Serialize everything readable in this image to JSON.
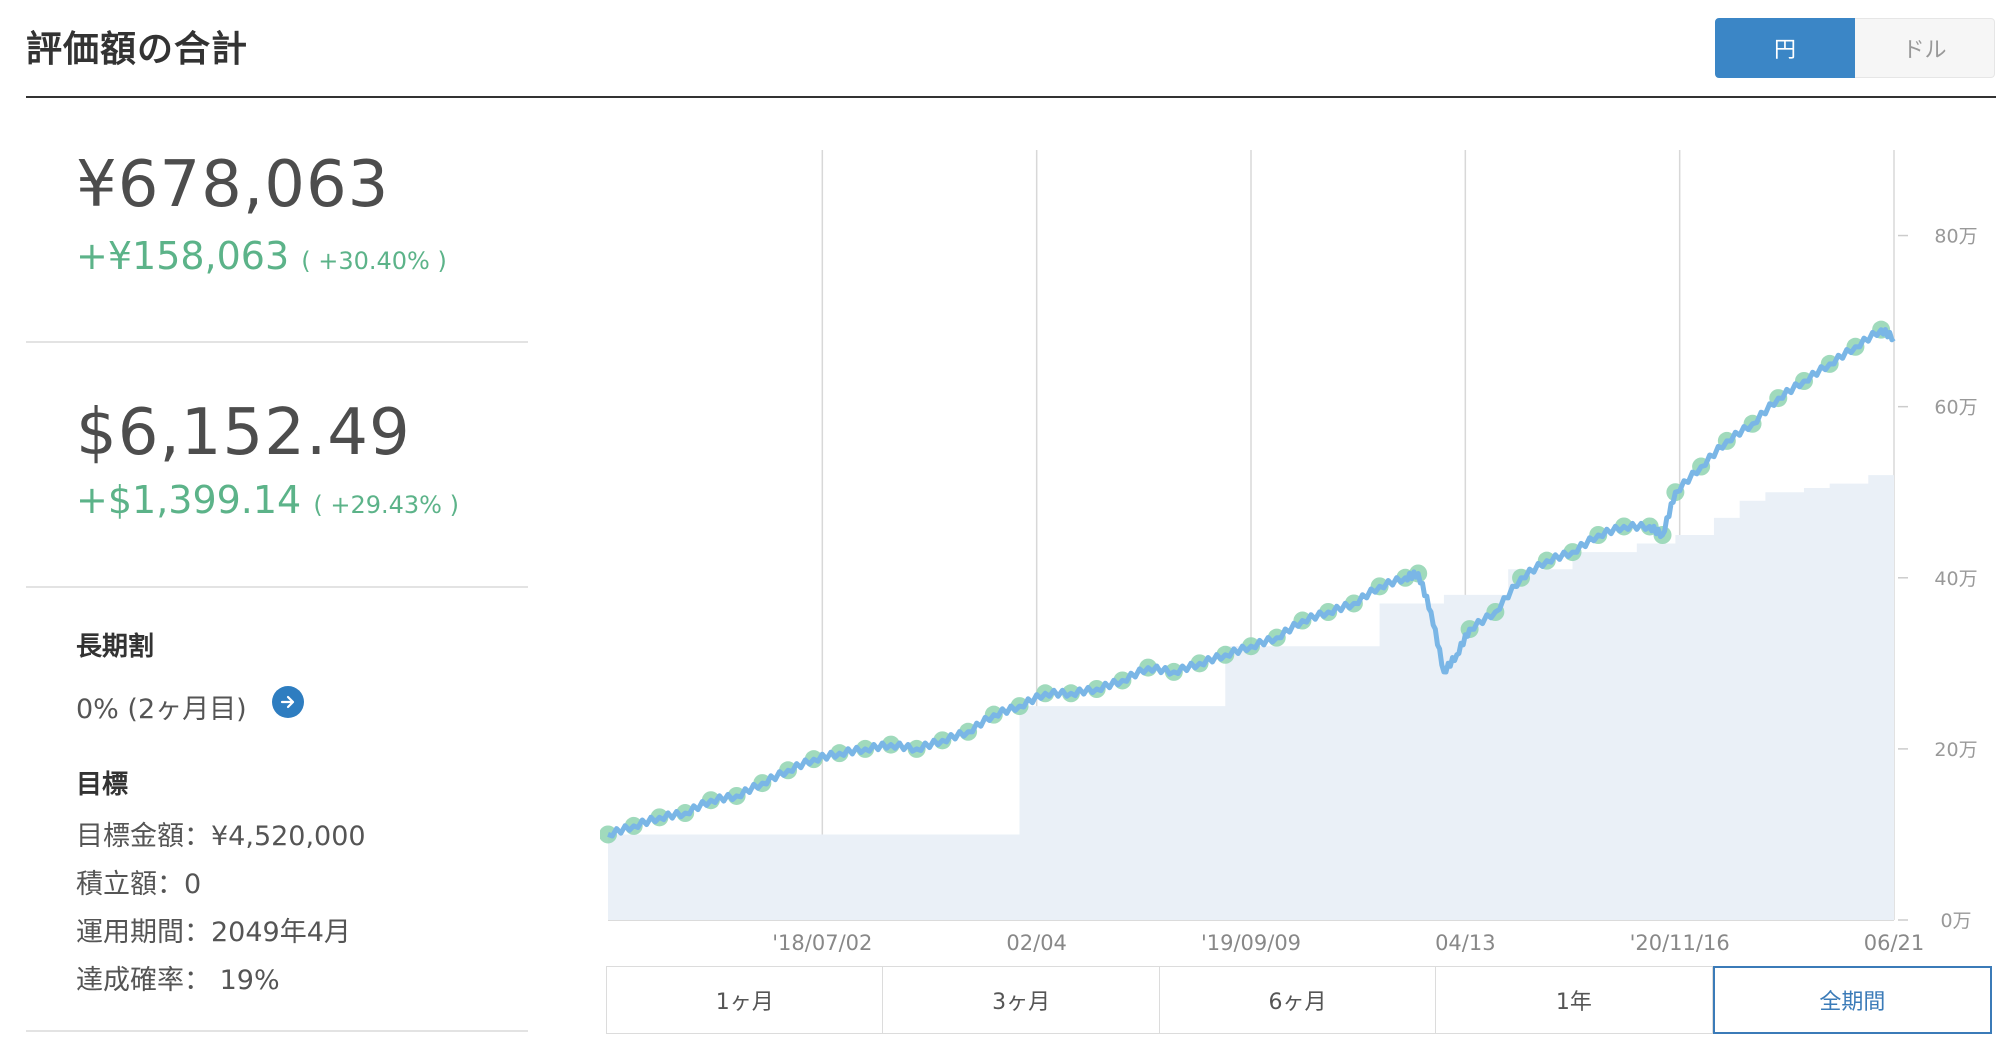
{
  "header": {
    "title": "評価額の合計",
    "currency_yen": "円",
    "currency_usd": "ドル"
  },
  "summary": {
    "yen_value": "¥678,063",
    "yen_gain": "+¥158,063",
    "yen_gain_pct": "( +30.40% )",
    "usd_value": "$6,152.49",
    "usd_gain": "+$1,399.14",
    "usd_gain_pct": "( +29.43% )"
  },
  "long_term": {
    "label": "長期割",
    "value": "0% (2ヶ月目)"
  },
  "goal": {
    "label": "目標",
    "amount": "目標金額：¥4,520,000",
    "contribution": "積立額：0",
    "period": "運用期間：2049年4月",
    "probability": "達成確率： 19%"
  },
  "range_buttons": [
    "1ヶ月",
    "3ヶ月",
    "6ヶ月",
    "1年",
    "全期間"
  ],
  "active_range": "全期間",
  "colors": {
    "accent": "#3b86c6",
    "gain": "#5cb389",
    "line": "#7ab6e6",
    "area": "#eaf0f7",
    "marker": "#8fd3b0"
  },
  "chart_data": {
    "type": "line",
    "x_tick_labels": [
      "'18/07/02",
      "02/04",
      "'19/09/09",
      "04/13",
      "'20/11/16",
      "06/21"
    ],
    "y_tick_labels": [
      "0万",
      "20万",
      "40万",
      "60万",
      "80万"
    ],
    "ylim": [
      0,
      90
    ],
    "y_unit": "万円",
    "series": [
      {
        "role": "valuation",
        "points": [
          [
            0,
            10
          ],
          [
            4,
            11
          ],
          [
            8,
            12
          ],
          [
            12,
            12.5
          ],
          [
            16,
            14
          ],
          [
            20,
            14.5
          ],
          [
            24,
            16
          ],
          [
            28,
            17.5
          ],
          [
            32,
            18.8
          ],
          [
            36,
            19.5
          ],
          [
            40,
            20
          ],
          [
            44,
            20.5
          ],
          [
            48,
            20
          ],
          [
            52,
            21
          ],
          [
            56,
            22
          ],
          [
            60,
            24
          ],
          [
            64,
            25
          ],
          [
            68,
            26.5
          ],
          [
            72,
            26.5
          ],
          [
            76,
            27
          ],
          [
            80,
            28
          ],
          [
            84,
            29.5
          ],
          [
            88,
            29
          ],
          [
            92,
            30
          ],
          [
            96,
            31
          ],
          [
            100,
            32
          ],
          [
            104,
            33
          ],
          [
            108,
            35
          ],
          [
            112,
            36
          ],
          [
            116,
            37
          ],
          [
            120,
            39
          ],
          [
            124,
            40
          ],
          [
            126,
            40.5
          ],
          [
            128,
            36
          ],
          [
            130,
            29
          ],
          [
            132,
            31
          ],
          [
            134,
            34
          ],
          [
            138,
            36
          ],
          [
            142,
            40
          ],
          [
            146,
            42
          ],
          [
            150,
            43
          ],
          [
            154,
            45
          ],
          [
            158,
            46
          ],
          [
            162,
            46
          ],
          [
            164,
            45
          ],
          [
            166,
            50
          ],
          [
            170,
            53
          ],
          [
            174,
            56
          ],
          [
            178,
            58
          ],
          [
            182,
            61
          ],
          [
            186,
            63
          ],
          [
            190,
            65
          ],
          [
            194,
            67
          ],
          [
            198,
            69
          ],
          [
            200,
            68
          ]
        ]
      },
      {
        "role": "principal",
        "steps": [
          [
            0,
            10
          ],
          [
            64,
            25
          ],
          [
            96,
            32
          ],
          [
            120,
            37
          ],
          [
            130,
            38
          ],
          [
            140,
            41
          ],
          [
            150,
            43
          ],
          [
            160,
            44
          ],
          [
            166,
            45
          ],
          [
            172,
            47
          ],
          [
            176,
            49
          ],
          [
            180,
            50
          ],
          [
            186,
            50.5
          ],
          [
            190,
            51
          ],
          [
            196,
            52
          ],
          [
            200,
            52
          ]
        ]
      }
    ]
  }
}
